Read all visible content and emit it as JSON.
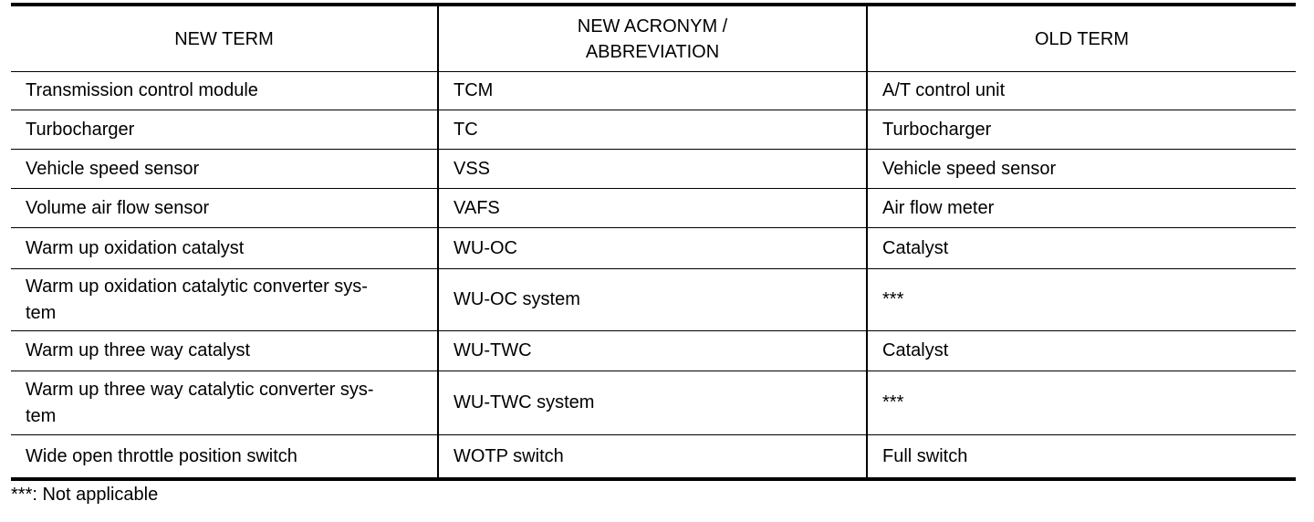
{
  "table": {
    "headers": [
      "NEW TERM",
      "NEW ACRONYM /\nABBREVIATION",
      "OLD TERM"
    ],
    "rows": [
      [
        "Transmission control module",
        "TCM",
        "A/T control unit"
      ],
      [
        "Turbocharger",
        "TC",
        "Turbocharger"
      ],
      [
        "Vehicle speed sensor",
        "VSS",
        "Vehicle speed sensor"
      ],
      [
        "Volume air flow sensor",
        "VAFS",
        "Air flow meter"
      ],
      [
        "Warm up oxidation catalyst",
        "WU-OC",
        "Catalyst"
      ],
      [
        "Warm up oxidation catalytic converter sys-\ntem",
        "WU-OC system",
        "***"
      ],
      [
        "Warm up three way catalyst",
        "WU-TWC",
        "Catalyst"
      ],
      [
        "Warm up three way catalytic converter sys-\ntem",
        "WU-TWC system",
        "***"
      ],
      [
        "Wide open throttle position switch",
        "WOTP switch",
        "Full switch"
      ]
    ]
  },
  "footnote": "***: Not applicable"
}
